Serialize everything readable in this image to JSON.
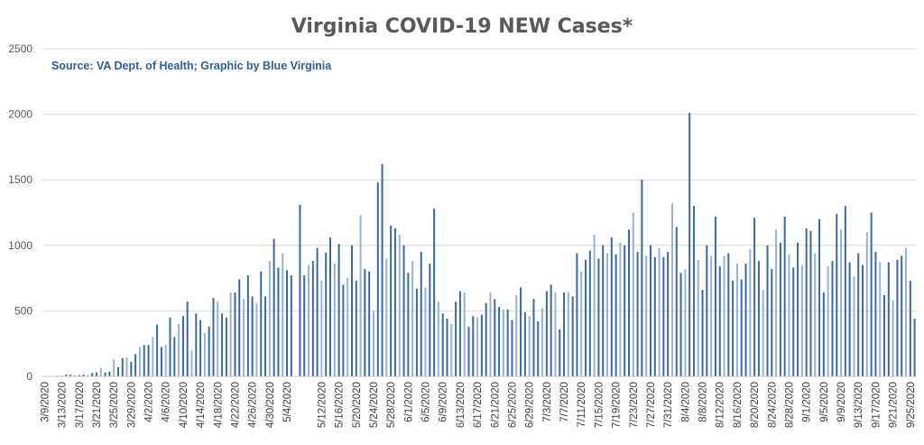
{
  "chart_data": {
    "type": "bar",
    "title": "Virginia COVID-19 NEW Cases*",
    "subtitle": "Source: VA Dept. of Health; Graphic by Blue Virginia",
    "xlabel": "",
    "ylabel": "",
    "ylim": [
      0,
      2500
    ],
    "yticks": [
      0,
      500,
      1000,
      1500,
      2000,
      2500
    ],
    "grid": true,
    "legend": "none",
    "colors": {
      "bar_dark": "#3b6a9c",
      "bar_light": "#95b3d7"
    },
    "tick_labels": [
      "3/9/2020",
      "3/13/2020",
      "3/17/2020",
      "3/21/2020",
      "3/25/2020",
      "3/29/2020",
      "4/2/2020",
      "4/6/2020",
      "4/10/2020",
      "4/14/2020",
      "4/18/2020",
      "4/22/2020",
      "4/26/2020",
      "4/30/2020",
      "5/4/2020",
      "5/12/2020",
      "5/16/2020",
      "5/20/2020",
      "5/24/2020",
      "5/28/2020",
      "6/1/2020",
      "6/5/2020",
      "6/9/2020",
      "6/13/2020",
      "6/17/2020",
      "6/21/2020",
      "6/25/2020",
      "6/29/2020",
      "7/3/2020",
      "7/7/2020",
      "7/11/2020",
      "7/15/2020",
      "7/19/2020",
      "7/23/2020",
      "7/27/2020",
      "7/31/2020",
      "8/4/2020",
      "8/8/2020",
      "8/12/2020",
      "8/16/2020",
      "8/20/2020",
      "8/24/2020",
      "8/28/2020",
      "9/1/2020",
      "9/5/2020",
      "9/9/2020",
      "9/13/2020",
      "9/17/2020",
      "9/21/2020",
      "9/25/2020"
    ],
    "tick_positions": [
      0,
      4,
      8,
      12,
      16,
      20,
      24,
      28,
      32,
      36,
      40,
      44,
      48,
      52,
      56,
      64,
      68,
      72,
      76,
      80,
      84,
      88,
      92,
      96,
      100,
      104,
      108,
      112,
      116,
      120,
      124,
      128,
      132,
      136,
      140,
      144,
      148,
      152,
      156,
      160,
      164,
      168,
      172,
      176,
      180,
      184,
      188,
      192,
      196,
      200
    ],
    "values": [
      2,
      3,
      1,
      5,
      5,
      14,
      13,
      9,
      10,
      14,
      10,
      25,
      30,
      65,
      30,
      36,
      130,
      70,
      140,
      145,
      110,
      170,
      225,
      240,
      240,
      300,
      395,
      225,
      240,
      450,
      300,
      400,
      460,
      570,
      200,
      480,
      430,
      330,
      380,
      600,
      570,
      480,
      450,
      640,
      640,
      740,
      590,
      770,
      610,
      560,
      800,
      610,
      880,
      1050,
      830,
      940,
      810,
      770,
      0,
      1310,
      770,
      850,
      880,
      980,
      730,
      945,
      1060,
      860,
      1010,
      700,
      750,
      1000,
      730,
      1230,
      820,
      800,
      500,
      1480,
      1620,
      900,
      1150,
      1130,
      1080,
      1000,
      790,
      880,
      670,
      950,
      680,
      860,
      1280,
      570,
      480,
      440,
      400,
      570,
      650,
      640,
      380,
      460,
      450,
      470,
      560,
      640,
      590,
      530,
      510,
      510,
      430,
      620,
      680,
      490,
      460,
      590,
      420,
      520,
      650,
      700,
      640,
      360,
      640,
      640,
      610,
      940,
      800,
      890,
      960,
      1080,
      900,
      1000,
      940,
      1060,
      930,
      1020,
      1000,
      1120,
      1250,
      950,
      1500,
      920,
      1000,
      910,
      980,
      910,
      950,
      1320,
      1140,
      790,
      820,
      2010,
      1300,
      890,
      660,
      1000,
      920,
      1220,
      840,
      920,
      940,
      730,
      860,
      740,
      860,
      970,
      1210,
      880,
      660,
      1000,
      820,
      1120,
      1020,
      1220,
      930,
      830,
      1020,
      850,
      1130,
      1110,
      940,
      1200,
      640,
      840,
      880,
      1240,
      1120,
      1300,
      870,
      760,
      940,
      850,
      1100,
      1250,
      950,
      870,
      620,
      870,
      580,
      890,
      920,
      980,
      730,
      440
    ]
  }
}
